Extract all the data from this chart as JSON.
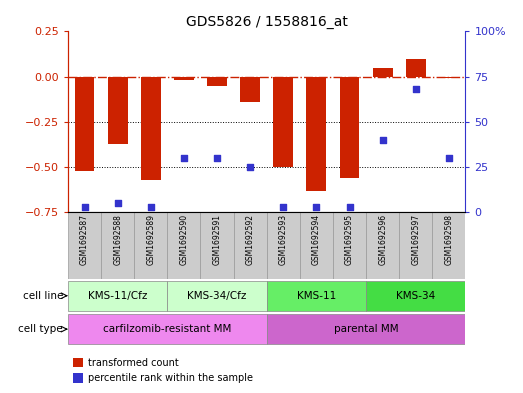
{
  "title": "GDS5826 / 1558816_at",
  "samples": [
    "GSM1692587",
    "GSM1692588",
    "GSM1692589",
    "GSM1692590",
    "GSM1692591",
    "GSM1692592",
    "GSM1692593",
    "GSM1692594",
    "GSM1692595",
    "GSM1692596",
    "GSM1692597",
    "GSM1692598"
  ],
  "transformed_count": [
    -0.52,
    -0.37,
    -0.57,
    -0.02,
    -0.05,
    -0.14,
    -0.5,
    -0.63,
    -0.56,
    0.05,
    0.1,
    -0.01
  ],
  "percentile_rank": [
    3,
    5,
    3,
    30,
    30,
    25,
    3,
    3,
    3,
    40,
    68,
    30
  ],
  "ylim_left": [
    -0.75,
    0.25
  ],
  "ylim_right": [
    0,
    100
  ],
  "yticks_left": [
    0.25,
    0,
    -0.25,
    -0.5,
    -0.75
  ],
  "yticks_right": [
    100,
    75,
    50,
    25,
    0
  ],
  "bar_color": "#cc2200",
  "dot_color": "#3333cc",
  "hline_color": "#cc2200",
  "grid_color": "#000000",
  "cell_line_groups": [
    {
      "label": "KMS-11/Cfz",
      "start": 0,
      "end": 2,
      "color": "#ccffcc"
    },
    {
      "label": "KMS-34/Cfz",
      "start": 3,
      "end": 5,
      "color": "#ccffcc"
    },
    {
      "label": "KMS-11",
      "start": 6,
      "end": 8,
      "color": "#66ee66"
    },
    {
      "label": "KMS-34",
      "start": 9,
      "end": 11,
      "color": "#66ee66"
    }
  ],
  "cell_type_groups": [
    {
      "label": "carfilzomib-resistant MM",
      "start": 0,
      "end": 5,
      "color": "#ee88ee"
    },
    {
      "label": "parental MM",
      "start": 6,
      "end": 11,
      "color": "#ee88ee"
    }
  ],
  "cell_line_label": "cell line",
  "cell_type_label": "cell type",
  "legend_items": [
    {
      "label": "transformed count",
      "color": "#cc2200"
    },
    {
      "label": "percentile rank within the sample",
      "color": "#3333cc"
    }
  ],
  "sample_box_color": "#cccccc",
  "sample_box_edge": "#999999"
}
